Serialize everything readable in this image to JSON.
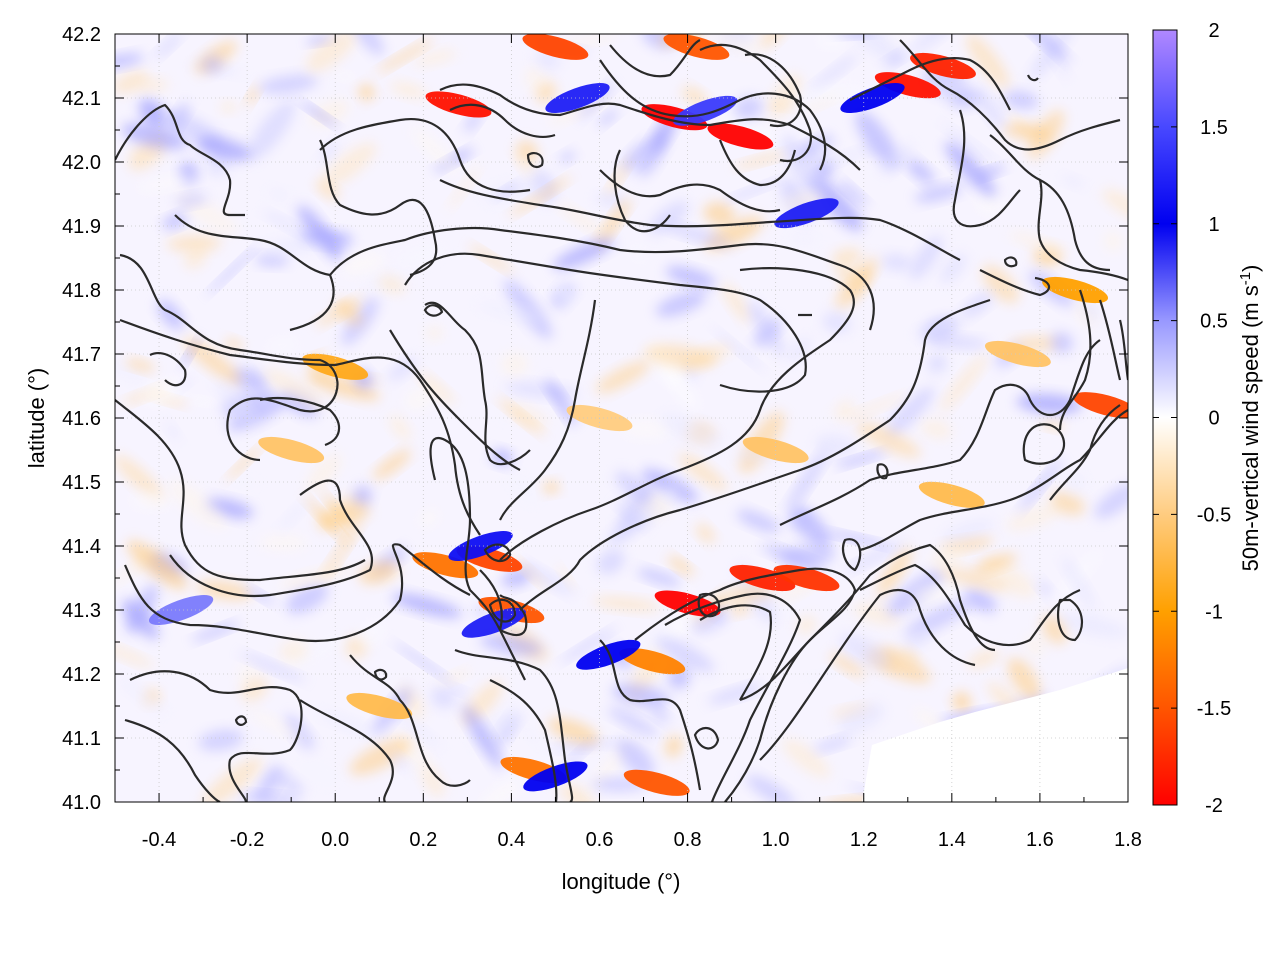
{
  "chart_data": {
    "type": "heatmap",
    "title": "",
    "xlabel": "longitude (°)",
    "ylabel": "latitude (°)",
    "xlim": [
      -0.5,
      1.8
    ],
    "ylim": [
      41.0,
      42.2
    ],
    "xticks": [
      -0.4,
      -0.2,
      0.0,
      0.2,
      0.4,
      0.6,
      0.8,
      1.0,
      1.2,
      1.4,
      1.6,
      1.8
    ],
    "xtick_labels": [
      "-0.4",
      "-0.2",
      "0.0",
      "0.2",
      "0.4",
      "0.6",
      "0.8",
      "1.0",
      "1.2",
      "1.4",
      "1.6",
      "1.8"
    ],
    "yticks": [
      41.0,
      41.1,
      41.2,
      41.3,
      41.4,
      41.5,
      41.6,
      41.7,
      41.8,
      41.9,
      42.0,
      42.1,
      42.2
    ],
    "ytick_labels": [
      "41.0",
      "41.1",
      "41.2",
      "41.3",
      "41.4",
      "41.5",
      "41.6",
      "41.7",
      "41.8",
      "41.9",
      "42.0",
      "42.1",
      "42.2"
    ],
    "grid": true,
    "colorbar": {
      "label_main": "50m-vertical wind speed (m s",
      "label_sup": "-1",
      "label_end": ")",
      "range": [
        -2,
        2
      ],
      "ticks": [
        2,
        1.5,
        1,
        0.5,
        0,
        -0.5,
        -1,
        -1.5,
        -2
      ],
      "tick_labels": [
        "2",
        "1.5",
        "1",
        "0.5",
        "0",
        "-0.5",
        "-1",
        "-1.5",
        "-2"
      ],
      "stops": [
        {
          "value": 2,
          "color": "#b088ff"
        },
        {
          "value": 1.5,
          "color": "#4848ff"
        },
        {
          "value": 1,
          "color": "#0000f0"
        },
        {
          "value": 0.5,
          "color": "#9898ff"
        },
        {
          "value": 0,
          "color": "#ffffff"
        },
        {
          "value": -0.5,
          "color": "#ffcc80"
        },
        {
          "value": -1,
          "color": "#ffa000"
        },
        {
          "value": -1.5,
          "color": "#ff5500"
        },
        {
          "value": -2,
          "color": "#ff0000"
        }
      ]
    },
    "contour_color": "#2a2a2a",
    "hotspots": [
      {
        "lon": 0.28,
        "lat": 42.09,
        "w": -1.9
      },
      {
        "lon": 0.77,
        "lat": 42.07,
        "w": -2.0
      },
      {
        "lon": 0.92,
        "lat": 42.04,
        "w": -2.0
      },
      {
        "lon": 1.3,
        "lat": 42.12,
        "w": -1.9
      },
      {
        "lon": 1.38,
        "lat": 42.15,
        "w": -1.8
      },
      {
        "lon": 0.5,
        "lat": 42.18,
        "w": -1.6
      },
      {
        "lon": 0.82,
        "lat": 42.18,
        "w": -1.5
      },
      {
        "lon": 0.84,
        "lat": 42.08,
        "w": 1.4
      },
      {
        "lon": 0.55,
        "lat": 42.1,
        "w": 1.2
      },
      {
        "lon": 1.22,
        "lat": 42.1,
        "w": 1.0
      },
      {
        "lon": 1.07,
        "lat": 41.92,
        "w": 0.9
      },
      {
        "lon": 0.8,
        "lat": 41.31,
        "w": -2.0
      },
      {
        "lon": 0.97,
        "lat": 41.35,
        "w": -1.8
      },
      {
        "lon": 1.07,
        "lat": 41.35,
        "w": -1.7
      },
      {
        "lon": 0.35,
        "lat": 41.38,
        "w": -1.6
      },
      {
        "lon": 0.4,
        "lat": 41.3,
        "w": -1.5
      },
      {
        "lon": 0.25,
        "lat": 41.37,
        "w": -1.3
      },
      {
        "lon": 0.72,
        "lat": 41.22,
        "w": -1.2
      },
      {
        "lon": 0.45,
        "lat": 41.05,
        "w": -1.3
      },
      {
        "lon": 0.73,
        "lat": 41.03,
        "w": -1.5
      },
      {
        "lon": 0.33,
        "lat": 41.4,
        "w": 1.1
      },
      {
        "lon": 0.36,
        "lat": 41.28,
        "w": 1.2
      },
      {
        "lon": 0.62,
        "lat": 41.23,
        "w": 1.0
      },
      {
        "lon": 0.5,
        "lat": 41.04,
        "w": 1.0
      },
      {
        "lon": 1.75,
        "lat": 41.62,
        "w": -1.6
      },
      {
        "lon": 1.68,
        "lat": 41.8,
        "w": -1.0
      },
      {
        "lon": 0.0,
        "lat": 41.68,
        "w": -0.9
      },
      {
        "lon": -0.1,
        "lat": 41.55,
        "w": -0.6
      },
      {
        "lon": 1.0,
        "lat": 41.55,
        "w": -0.6
      },
      {
        "lon": 1.4,
        "lat": 41.48,
        "w": -0.7
      },
      {
        "lon": -0.35,
        "lat": 41.3,
        "w": 0.6
      },
      {
        "lon": 0.1,
        "lat": 41.15,
        "w": -0.7
      },
      {
        "lon": 0.6,
        "lat": 41.6,
        "w": -0.5
      },
      {
        "lon": 1.55,
        "lat": 41.7,
        "w": -0.6
      }
    ]
  }
}
